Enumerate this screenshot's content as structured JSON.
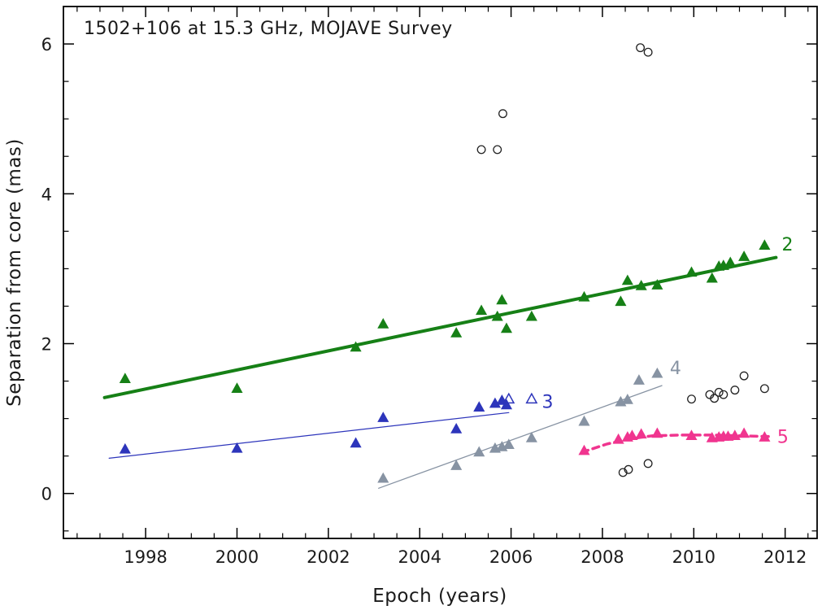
{
  "title": "1502+106 at 15.3 GHz, MOJAVE Survey",
  "chart_data": {
    "type": "scatter",
    "title": "1502+106 at 15.3 GHz, MOJAVE Survey",
    "xlabel": "Epoch (years)",
    "ylabel": "Separation from core (mas)",
    "xlim": [
      1996.2,
      2012.7
    ],
    "ylim": [
      -0.6,
      6.5
    ],
    "xticks": [
      1998,
      2000,
      2002,
      2004,
      2006,
      2008,
      2010,
      2012
    ],
    "yticks": [
      0,
      2,
      4,
      6
    ],
    "x_minor_step": 0.5,
    "y_minor_step": 0.5,
    "grid": false,
    "legend_position": "inline-right-labels",
    "frame_color": "#000000",
    "series": [
      {
        "name": "component-2",
        "label": "2",
        "color": "#168016",
        "marker": "triangle",
        "points": [
          [
            1997.55,
            1.53
          ],
          [
            2000.0,
            1.4
          ],
          [
            2002.6,
            1.95
          ],
          [
            2003.2,
            2.26
          ],
          [
            2004.8,
            2.14
          ],
          [
            2005.35,
            2.44
          ],
          [
            2005.7,
            2.36
          ],
          [
            2005.8,
            2.58
          ],
          [
            2005.9,
            2.2
          ],
          [
            2006.45,
            2.36
          ],
          [
            2007.6,
            2.62
          ],
          [
            2008.4,
            2.56
          ],
          [
            2008.55,
            2.84
          ],
          [
            2008.85,
            2.77
          ],
          [
            2009.2,
            2.78
          ],
          [
            2009.95,
            2.95
          ],
          [
            2010.4,
            2.87
          ],
          [
            2010.55,
            3.03
          ],
          [
            2010.65,
            3.04
          ],
          [
            2010.8,
            3.08
          ],
          [
            2011.1,
            3.16
          ],
          [
            2011.55,
            3.31
          ]
        ],
        "open_points": [],
        "line": {
          "points": [
            [
              1997.1,
              1.28
            ],
            [
              2011.8,
              3.15
            ]
          ],
          "width": 4,
          "dash": null
        },
        "label_pos": [
          2012.05,
          3.33
        ]
      },
      {
        "name": "component-3",
        "label": "3",
        "color": "#2d35bb",
        "marker": "triangle",
        "points": [
          [
            1997.55,
            0.59
          ],
          [
            2000.0,
            0.6
          ],
          [
            2002.6,
            0.67
          ],
          [
            2003.2,
            1.01
          ],
          [
            2004.8,
            0.86
          ],
          [
            2005.3,
            1.15
          ],
          [
            2005.65,
            1.2
          ],
          [
            2005.8,
            1.24
          ],
          [
            2005.9,
            1.18
          ]
        ],
        "open_points": [
          [
            2005.95,
            1.26
          ],
          [
            2006.45,
            1.26
          ]
        ],
        "line": {
          "points": [
            [
              1997.2,
              0.47
            ],
            [
              2005.95,
              1.08
            ]
          ],
          "width": 1.2,
          "dash": null
        },
        "label_pos": [
          2006.8,
          1.23
        ]
      },
      {
        "name": "component-4",
        "label": "4",
        "color": "#8793a3",
        "marker": "triangle",
        "points": [
          [
            2003.2,
            0.2
          ],
          [
            2004.8,
            0.37
          ],
          [
            2005.3,
            0.55
          ],
          [
            2005.65,
            0.6
          ],
          [
            2005.8,
            0.62
          ],
          [
            2005.95,
            0.65
          ],
          [
            2006.45,
            0.74
          ],
          [
            2007.6,
            0.96
          ],
          [
            2008.4,
            1.22
          ],
          [
            2008.55,
            1.25
          ],
          [
            2008.8,
            1.51
          ],
          [
            2009.2,
            1.6
          ]
        ],
        "open_points": [],
        "line": {
          "points": [
            [
              2003.1,
              0.07
            ],
            [
              2009.3,
              1.44
            ]
          ],
          "width": 1.3,
          "dash": null
        },
        "label_pos": [
          2009.6,
          1.68
        ]
      },
      {
        "name": "component-5",
        "label": "5",
        "color": "#f0358f",
        "marker": "triangle",
        "points": [
          [
            2007.6,
            0.57
          ],
          [
            2008.35,
            0.72
          ],
          [
            2008.55,
            0.75
          ],
          [
            2008.65,
            0.77
          ],
          [
            2008.85,
            0.79
          ],
          [
            2009.2,
            0.8
          ],
          [
            2009.95,
            0.77
          ],
          [
            2010.4,
            0.74
          ],
          [
            2010.55,
            0.75
          ],
          [
            2010.65,
            0.76
          ],
          [
            2010.75,
            0.76
          ],
          [
            2010.9,
            0.77
          ],
          [
            2011.1,
            0.8
          ],
          [
            2011.55,
            0.75
          ]
        ],
        "open_points": [],
        "line": {
          "points": [
            [
              2007.55,
              0.55
            ],
            [
              2008.1,
              0.66
            ],
            [
              2008.6,
              0.73
            ],
            [
              2009.1,
              0.77
            ],
            [
              2009.7,
              0.78
            ],
            [
              2010.4,
              0.78
            ],
            [
              2011.0,
              0.77
            ],
            [
              2011.65,
              0.76
            ]
          ],
          "width": 3.5,
          "dash": "8 6"
        },
        "label_pos": [
          2011.95,
          0.76
        ]
      },
      {
        "name": "unassociated-features",
        "label": "",
        "color": "#222222",
        "marker": "circle-open",
        "points": [
          [
            2005.35,
            4.59
          ],
          [
            2005.7,
            4.59
          ],
          [
            2005.82,
            5.07
          ],
          [
            2008.83,
            5.95
          ],
          [
            2009.0,
            5.89
          ],
          [
            2008.45,
            0.28
          ],
          [
            2008.57,
            0.32
          ],
          [
            2009.0,
            0.4
          ],
          [
            2009.95,
            1.26
          ],
          [
            2010.35,
            1.32
          ],
          [
            2010.45,
            1.27
          ],
          [
            2010.55,
            1.35
          ],
          [
            2010.65,
            1.32
          ],
          [
            2010.9,
            1.38
          ],
          [
            2011.1,
            1.57
          ],
          [
            2011.55,
            1.4
          ]
        ],
        "open_points": [],
        "line": null,
        "label_pos": null
      }
    ]
  }
}
